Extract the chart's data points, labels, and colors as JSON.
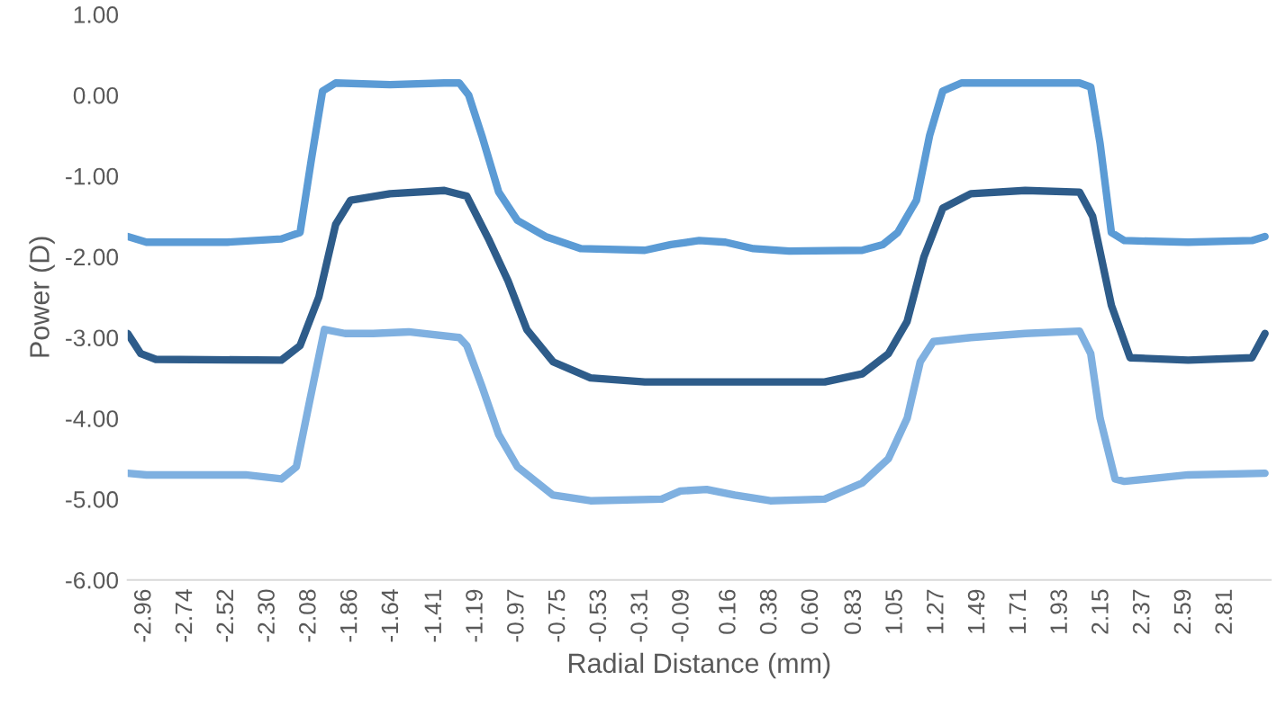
{
  "chart_data": {
    "type": "line",
    "xlabel": "Radial Distance (mm)",
    "ylabel": "Power (D)",
    "xlim": [
      -3.05,
      3.05
    ],
    "xticks": [
      -2.96,
      -2.74,
      -2.52,
      {
        "value": -2.3,
        "label": "-2.30"
      },
      -2.08,
      -1.86,
      -1.64,
      -1.41,
      -1.19,
      -0.97,
      -0.75,
      -0.53,
      -0.31,
      -0.09,
      0.16,
      0.38,
      {
        "value": 0.6,
        "label": "0.60"
      },
      0.83,
      1.05,
      1.27,
      1.49,
      1.71,
      1.93,
      2.15,
      2.37,
      2.59,
      2.81
    ],
    "ylim": [
      -6,
      1
    ],
    "yticks": [
      {
        "value": 1,
        "label": "1.00"
      },
      {
        "value": 0,
        "label": "0.00"
      },
      {
        "value": -1,
        "label": "-1.00"
      },
      {
        "value": -2,
        "label": "-2.00"
      },
      {
        "value": -3,
        "label": "-3.00"
      },
      {
        "value": -4,
        "label": "-4.00"
      },
      {
        "value": -5,
        "label": "-5.00"
      },
      {
        "value": -6,
        "label": "-6.00"
      }
    ],
    "grid": false,
    "marker": "none",
    "line_style": "solid",
    "series": [
      {
        "color": "#5b9bd5",
        "x": [
          -3.05,
          -2.95,
          -2.52,
          -2.23,
          -2.13,
          -2.07,
          -2.01,
          -1.94,
          -1.65,
          -1.36,
          -1.28,
          -1.23,
          -1.16,
          -1.07,
          -0.97,
          -0.82,
          -0.63,
          -0.29,
          -0.15,
          0.0,
          0.14,
          0.29,
          0.48,
          0.87,
          0.98,
          1.06,
          1.16,
          1.23,
          1.3,
          1.4,
          1.74,
          2.03,
          2.09,
          2.14,
          2.2,
          2.27,
          2.61,
          2.95,
          3.02
        ],
        "values": [
          -1.75,
          -1.82,
          -1.82,
          -1.78,
          -1.7,
          -0.8,
          0.05,
          0.15,
          0.13,
          0.15,
          0.15,
          0.0,
          -0.5,
          -1.2,
          -1.55,
          -1.75,
          -1.9,
          -1.92,
          -1.85,
          -1.8,
          -1.82,
          -1.9,
          -1.93,
          -1.92,
          -1.85,
          -1.7,
          -1.3,
          -0.5,
          0.05,
          0.15,
          0.15,
          0.15,
          0.1,
          -0.6,
          -1.7,
          -1.8,
          -1.82,
          -1.8,
          -1.75
        ]
      },
      {
        "color": "#2e5c8a",
        "x": [
          -3.05,
          -2.98,
          -2.9,
          -2.23,
          -2.13,
          -2.03,
          -1.94,
          -1.86,
          -1.65,
          -1.36,
          -1.24,
          -1.12,
          -1.02,
          -0.92,
          -0.78,
          -0.58,
          -0.29,
          -0.1,
          0.29,
          0.67,
          0.87,
          1.01,
          1.11,
          1.2,
          1.3,
          1.45,
          1.74,
          2.03,
          2.1,
          2.2,
          2.3,
          2.61,
          2.95,
          3.02
        ],
        "values": [
          -2.95,
          -3.2,
          -3.27,
          -3.28,
          -3.1,
          -2.5,
          -1.6,
          -1.3,
          -1.22,
          -1.18,
          -1.25,
          -1.8,
          -2.3,
          -2.9,
          -3.3,
          -3.5,
          -3.55,
          -3.55,
          -3.55,
          -3.55,
          -3.45,
          -3.2,
          -2.8,
          -2.0,
          -1.4,
          -1.22,
          -1.18,
          -1.2,
          -1.5,
          -2.6,
          -3.25,
          -3.28,
          -3.25,
          -2.95
        ]
      },
      {
        "color": "#7fb0e0",
        "x": [
          -3.05,
          -2.95,
          -2.42,
          -2.23,
          -2.15,
          -2.08,
          -2.0,
          -1.89,
          -1.74,
          -1.55,
          -1.28,
          -1.24,
          -1.16,
          -1.07,
          -0.97,
          -0.78,
          -0.58,
          -0.2,
          -0.1,
          0.04,
          0.19,
          0.38,
          0.67,
          0.87,
          1.01,
          1.11,
          1.18,
          1.25,
          1.45,
          1.74,
          2.03,
          2.09,
          2.14,
          2.22,
          2.27,
          2.61,
          3.02
        ],
        "values": [
          -4.68,
          -4.7,
          -4.7,
          -4.75,
          -4.6,
          -3.8,
          -2.9,
          -2.95,
          -2.95,
          -2.93,
          -3.0,
          -3.1,
          -3.6,
          -4.2,
          -4.6,
          -4.95,
          -5.02,
          -5.0,
          -4.9,
          -4.88,
          -4.95,
          -5.02,
          -5.0,
          -4.8,
          -4.5,
          -4.0,
          -3.3,
          -3.05,
          -3.0,
          -2.95,
          -2.92,
          -3.2,
          -4.0,
          -4.75,
          -4.78,
          -4.7,
          -4.68
        ]
      }
    ]
  }
}
